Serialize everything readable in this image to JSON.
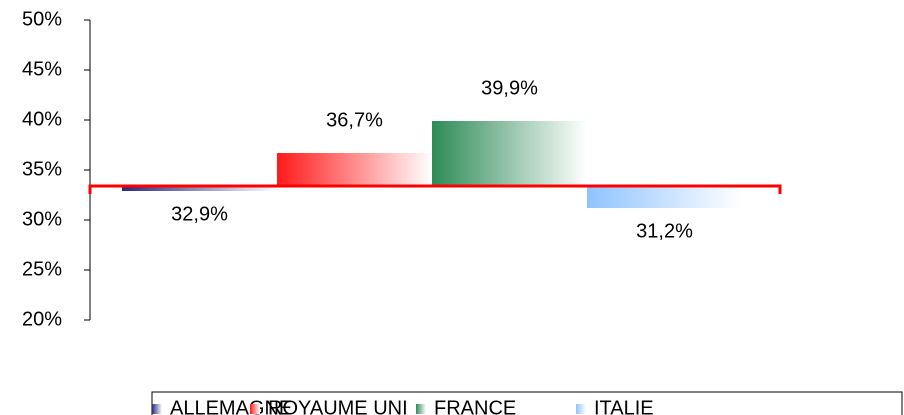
{
  "chart_data": {
    "type": "bar",
    "categories": [
      "ALLEMAGNE",
      "ROYAUME UNI",
      "FRANCE",
      "ITALIE"
    ],
    "values": [
      32.9,
      36.7,
      39.9,
      31.2
    ],
    "value_labels": [
      "32,9%",
      "36,7%",
      "39,9%",
      "31,2%"
    ],
    "colors": [
      "#2a2a80",
      "#ff1a1a",
      "#2e8b57",
      "#8fc3ff"
    ],
    "ylim": [
      20,
      50
    ],
    "yticks": [
      {
        "value": 20,
        "label": "20%"
      },
      {
        "value": 25,
        "label": "25%"
      },
      {
        "value": 30,
        "label": "30%"
      },
      {
        "value": 35,
        "label": "35%"
      },
      {
        "value": 40,
        "label": "40%"
      },
      {
        "value": 45,
        "label": "45%"
      },
      {
        "value": 50,
        "label": "50%"
      }
    ],
    "x_axis_crosses": 33.4,
    "axis_line_color": "#ff0000",
    "legend": "bottom"
  }
}
